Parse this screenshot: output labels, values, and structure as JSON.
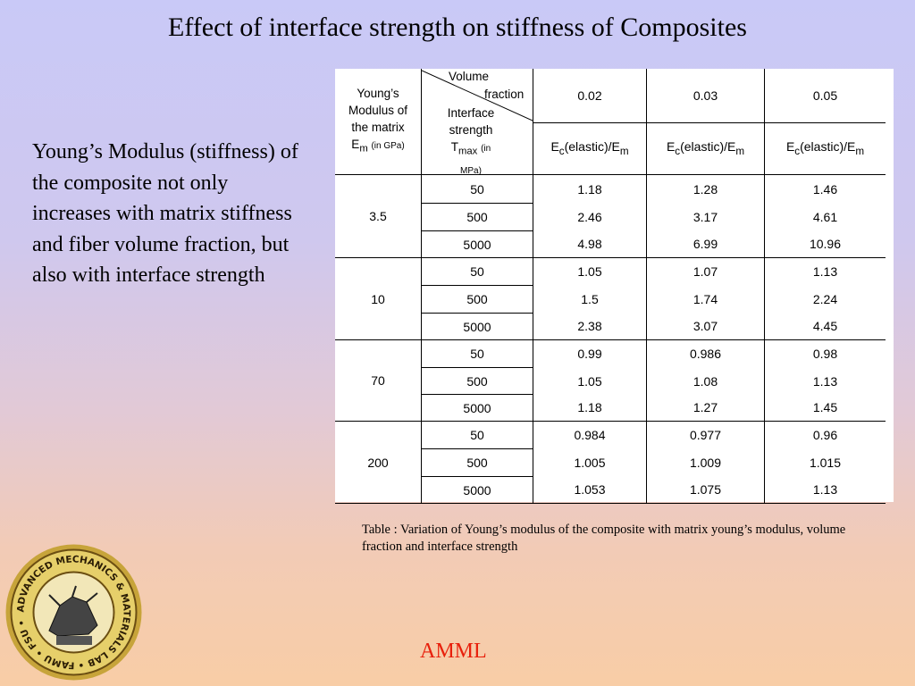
{
  "slide": {
    "title": "Effect of interface strength on stiffness of Composites",
    "body_text": "Young’s Modulus (stiffness) of the composite not only increases with matrix stiffness and fiber volume fraction, but also with interface strength",
    "caption": "Table :  Variation of Young’s modulus of the composite with matrix young’s modulus, volume fraction and interface strength",
    "footer": "AMML",
    "logo_text": "ADVANCED MECHANICS & MATERIALS LAB • FAMU • FSU •"
  },
  "table": {
    "header": {
      "ym_line1": "Young’s",
      "ym_line2": "Modulus of",
      "ym_line3": "the matrix",
      "ym_sym": "E",
      "ym_sub": "m",
      "ym_unit": "(in GPa)",
      "volume": "Volume",
      "fraction": "fraction",
      "interface": "Interface",
      "strength": "strength",
      "tmax_sym": "T",
      "tmax_sub": "max",
      "tmax_unit": "(in MPa)",
      "vf": [
        "0.02",
        "0.03",
        "0.05"
      ],
      "ratio_E": "E",
      "ratio_c": "c",
      "ratio_mid": "(elastic)/E",
      "ratio_m": "m"
    },
    "groups": [
      {
        "em": "3.5",
        "rows": [
          {
            "t": "50",
            "v": [
              "1.18",
              "1.28",
              "1.46"
            ]
          },
          {
            "t": "500",
            "v": [
              "2.46",
              "3.17",
              "4.61"
            ]
          },
          {
            "t": "5000",
            "v": [
              "4.98",
              "6.99",
              "10.96"
            ]
          }
        ]
      },
      {
        "em": "10",
        "rows": [
          {
            "t": "50",
            "v": [
              "1.05",
              "1.07",
              "1.13"
            ]
          },
          {
            "t": "500",
            "v": [
              "1.5",
              "1.74",
              "2.24"
            ]
          },
          {
            "t": "5000",
            "v": [
              "2.38",
              "3.07",
              "4.45"
            ]
          }
        ]
      },
      {
        "em": "70",
        "rows": [
          {
            "t": "50",
            "v": [
              "0.99",
              "0.986",
              "0.98"
            ]
          },
          {
            "t": "500",
            "v": [
              "1.05",
              "1.08",
              "1.13"
            ]
          },
          {
            "t": "5000",
            "v": [
              "1.18",
              "1.27",
              "1.45"
            ]
          }
        ]
      },
      {
        "em": "200",
        "rows": [
          {
            "t": "50",
            "v": [
              "0.984",
              "0.977",
              "0.96"
            ]
          },
          {
            "t": "500",
            "v": [
              "1.005",
              "1.009",
              "1.015"
            ]
          },
          {
            "t": "5000",
            "v": [
              "1.053",
              "1.075",
              "1.13"
            ]
          }
        ]
      }
    ]
  }
}
